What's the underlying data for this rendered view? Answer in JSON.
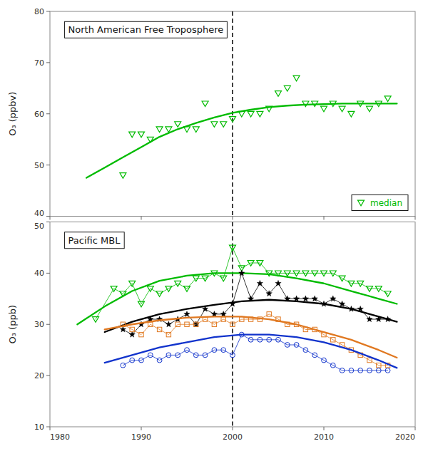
{
  "chart_data": [
    {
      "type": "line",
      "title": "North American Free Troposphere",
      "ylabel": "O₃ (ppbv)",
      "xlim": [
        1980,
        2020
      ],
      "ylim": [
        40,
        80
      ],
      "xticks": [
        1980,
        1990,
        2000,
        2010,
        2020
      ],
      "yticks": [
        40,
        50,
        60,
        70,
        80
      ],
      "tick_labels": "y",
      "grid": false,
      "legend": "lower right",
      "vline": 2000,
      "series": [
        {
          "type": "line",
          "color": "#00bb00",
          "x": [
            1984,
            1986,
            1988,
            1990,
            1992,
            1994,
            1996,
            1998,
            2000,
            2002,
            2004,
            2006,
            2008,
            2010,
            2012,
            2014,
            2016,
            2018
          ],
          "values": [
            47.5,
            49.5,
            51.5,
            53.5,
            55.5,
            57.0,
            58.2,
            59.3,
            60.2,
            60.8,
            61.3,
            61.6,
            61.8,
            61.9,
            62.0,
            62.0,
            62.0,
            62.0
          ]
        },
        {
          "type": "scatter",
          "name": "median",
          "color": "#00bb00",
          "marker": "triangle-down",
          "x": [
            1988,
            1989,
            1990,
            1991,
            1992,
            1993,
            1994,
            1995,
            1996,
            1997,
            1998,
            1999,
            2000,
            2001,
            2002,
            2003,
            2004,
            2005,
            2006,
            2007,
            2008,
            2009,
            2010,
            2011,
            2012,
            2013,
            2014,
            2015,
            2016,
            2017
          ],
          "values": [
            48,
            56,
            56,
            55,
            57,
            57,
            58,
            57,
            57,
            62,
            58,
            58,
            59,
            60,
            60,
            60,
            61,
            64,
            65,
            67,
            62,
            62,
            61,
            62,
            61,
            60,
            62,
            61,
            62,
            63
          ]
        }
      ]
    },
    {
      "type": "line",
      "title": "Pacific MBL",
      "ylabel": "O₃ (ppb)",
      "xlim": [
        1980,
        2020
      ],
      "ylim": [
        10,
        50
      ],
      "xticks": [
        1980,
        1990,
        2000,
        2010,
        2020
      ],
      "yticks": [
        10,
        20,
        30,
        40,
        50
      ],
      "grid": false,
      "vline": 2000,
      "series": [
        {
          "type": "line",
          "color": "#00bb00",
          "marker": "triangle-down",
          "x": [
            1985,
            1987,
            1988,
            1989,
            1990,
            1991,
            1992,
            1993,
            1994,
            1995,
            1996,
            1997,
            1998,
            1999,
            2000,
            2001,
            2002,
            2003,
            2004,
            2005,
            2006,
            2007,
            2008,
            2009,
            2010,
            2011,
            2012,
            2013,
            2014,
            2015,
            2016,
            2017
          ],
          "values": [
            31,
            37,
            36,
            38,
            34,
            37,
            36,
            37,
            38,
            37,
            39,
            39,
            40,
            39,
            45,
            41,
            42,
            42,
            40,
            40,
            40,
            40,
            40,
            40,
            40,
            40,
            39,
            38,
            38,
            37,
            37,
            36
          ]
        },
        {
          "type": "line",
          "color": "#00bb00",
          "x": [
            1983,
            1986,
            1989,
            1992,
            1995,
            1998,
            2001,
            2004,
            2007,
            2010,
            2013,
            2016,
            2018
          ],
          "values": [
            30.0,
            33.5,
            36.5,
            38.5,
            39.5,
            40.0,
            40.0,
            39.8,
            39.0,
            38.0,
            36.5,
            35.0,
            34.0
          ]
        },
        {
          "type": "line",
          "color": "#000000",
          "marker": "star",
          "x": [
            1988,
            1989,
            1990,
            1991,
            1992,
            1993,
            1994,
            1995,
            1996,
            1997,
            1998,
            1999,
            2000,
            2001,
            2002,
            2003,
            2004,
            2005,
            2006,
            2007,
            2008,
            2009,
            2010,
            2011,
            2012,
            2013,
            2014,
            2015,
            2016,
            2017
          ],
          "values": [
            29,
            28,
            30,
            31,
            31,
            30,
            31,
            32,
            30,
            33,
            32,
            32,
            34,
            40,
            35,
            38,
            36,
            38,
            35,
            35,
            35,
            35,
            34,
            35,
            34,
            33,
            33,
            31,
            31,
            31
          ]
        },
        {
          "type": "line",
          "color": "#000000",
          "x": [
            1986,
            1989,
            1992,
            1995,
            1998,
            2001,
            2004,
            2007,
            2010,
            2013,
            2016,
            2018
          ],
          "values": [
            28.5,
            30.5,
            32.0,
            33.0,
            33.8,
            34.5,
            34.8,
            34.5,
            34.0,
            33.0,
            31.5,
            30.5
          ]
        },
        {
          "type": "line",
          "color": "#e07820",
          "marker": "square",
          "x": [
            1988,
            1989,
            1990,
            1991,
            1992,
            1993,
            1994,
            1995,
            1996,
            1997,
            1998,
            1999,
            2000,
            2001,
            2002,
            2003,
            2004,
            2005,
            2006,
            2007,
            2008,
            2009,
            2010,
            2011,
            2012,
            2013,
            2014,
            2015,
            2016,
            2017
          ],
          "values": [
            30,
            29,
            28,
            30,
            29,
            28,
            30,
            30,
            30,
            31,
            30,
            31,
            30,
            31,
            31,
            31,
            32,
            31,
            30,
            30,
            29,
            29,
            28,
            27,
            26,
            25,
            24,
            23,
            22,
            22
          ]
        },
        {
          "type": "line",
          "color": "#e07820",
          "x": [
            1986,
            1989,
            1992,
            1995,
            1998,
            2001,
            2004,
            2007,
            2010,
            2013,
            2016,
            2018
          ],
          "values": [
            29.0,
            30.0,
            30.8,
            31.3,
            31.5,
            31.5,
            31.0,
            30.0,
            28.5,
            27.0,
            25.0,
            23.5
          ]
        },
        {
          "type": "line",
          "color": "#1133cc",
          "marker": "circle",
          "x": [
            1988,
            1989,
            1990,
            1991,
            1992,
            1993,
            1994,
            1995,
            1996,
            1997,
            1998,
            1999,
            2000,
            2001,
            2002,
            2003,
            2004,
            2005,
            2006,
            2007,
            2008,
            2009,
            2010,
            2011,
            2012,
            2013,
            2014,
            2015,
            2016,
            2017
          ],
          "values": [
            22,
            23,
            23,
            24,
            23,
            24,
            24,
            25,
            24,
            24,
            25,
            25,
            24,
            28,
            27,
            27,
            27,
            27,
            26,
            26,
            25,
            24,
            23,
            22,
            21,
            21,
            21,
            21,
            21,
            21
          ]
        },
        {
          "type": "line",
          "color": "#1133cc",
          "x": [
            1986,
            1989,
            1992,
            1995,
            1998,
            2001,
            2004,
            2007,
            2010,
            2013,
            2016,
            2018
          ],
          "values": [
            22.5,
            24.0,
            25.5,
            26.5,
            27.5,
            28.0,
            28.0,
            27.5,
            26.5,
            25.0,
            23.0,
            21.5
          ]
        }
      ]
    }
  ]
}
